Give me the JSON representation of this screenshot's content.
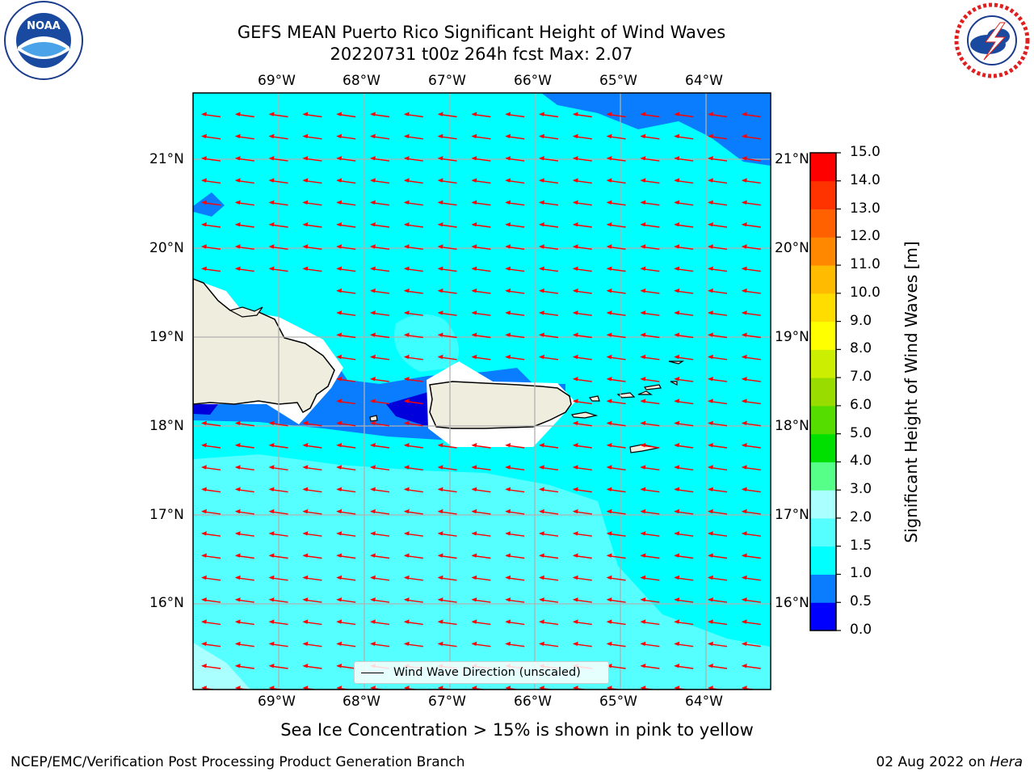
{
  "title": {
    "line1": "GEFS MEAN Puerto Rico Significant Height of Wind Waves",
    "line2": "20220731 t00z 264h fcst   Max: 2.07"
  },
  "map": {
    "lon_labels": [
      "69°W",
      "68°W",
      "67°W",
      "66°W",
      "65°W",
      "64°W"
    ],
    "lat_labels": [
      "21°N",
      "20°N",
      "19°N",
      "18°N",
      "17°N",
      "16°N"
    ],
    "ocean_color": "#00ffff",
    "land_color": "#efedde",
    "arrow_color": "#ff0000",
    "grid_color": "#b0b0b0",
    "legend_label": "Wind Wave Direction (unscaled)"
  },
  "colorbar": {
    "label": "Significant Height of Wind Waves [m]",
    "ticks": [
      "0.0",
      "0.5",
      "1.0",
      "1.5",
      "2.0",
      "3.0",
      "4.0",
      "5.0",
      "6.0",
      "7.0",
      "8.0",
      "9.0",
      "10.0",
      "11.0",
      "12.0",
      "13.0",
      "14.0",
      "15.0"
    ],
    "colors": [
      "#0000ff",
      "#0a7dff",
      "#00ffff",
      "#55ffff",
      "#aaffff",
      "#55ff88",
      "#00e000",
      "#55dd00",
      "#99dd00",
      "#ccee00",
      "#ffff00",
      "#ffdd00",
      "#ffbb00",
      "#ff8800",
      "#ff6000",
      "#ff3300",
      "#ff0000"
    ]
  },
  "note": "Sea Ice Concentration > 15% is shown in pink to yellow",
  "footer": {
    "left": "NCEP/EMC/Verification Post Processing Product Generation Branch",
    "date": "02 Aug 2022 on",
    "host": "Hera"
  },
  "logos": {
    "noaa": "NOAA",
    "nws": "NATIONAL WEATHER SERVICE"
  }
}
